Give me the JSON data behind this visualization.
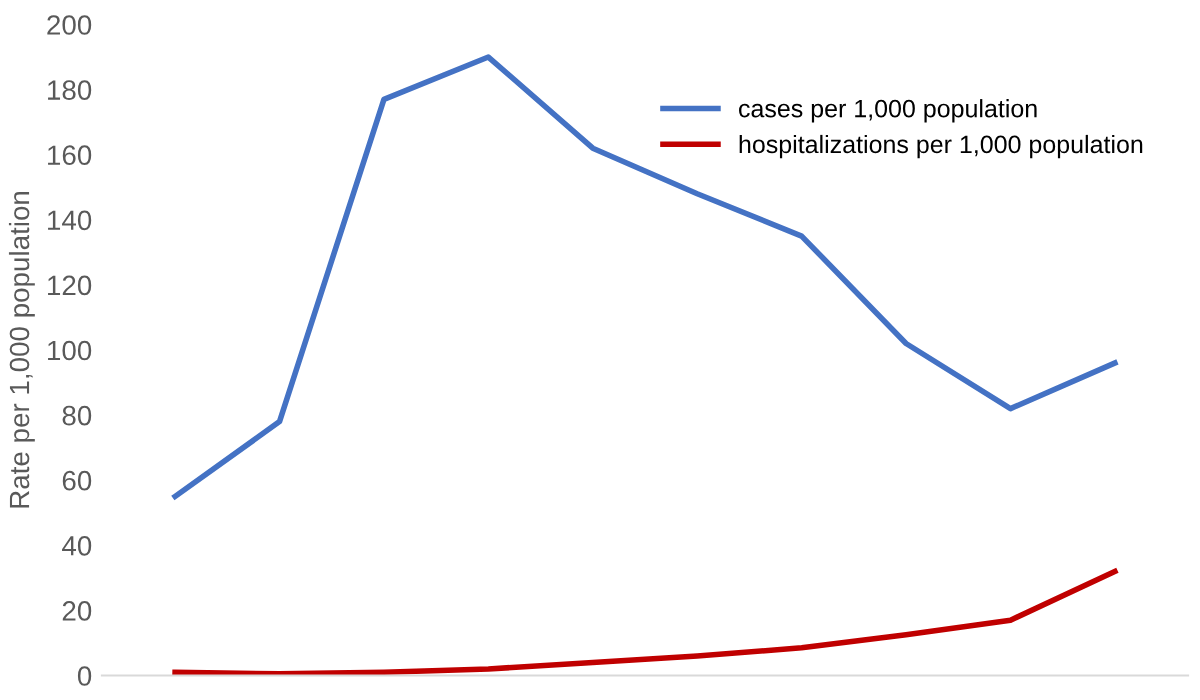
{
  "chart_data": {
    "type": "line",
    "ylabel": "Rate per 1,000 population",
    "categories": [
      null,
      null,
      null,
      null,
      null,
      null,
      null,
      null,
      null,
      null
    ],
    "series": [
      {
        "name": "cases per 1,000 population",
        "color": "#4472c4",
        "values": [
          55,
          78,
          177,
          190,
          162,
          148,
          135,
          102,
          82,
          96
        ]
      },
      {
        "name": "hospitalizations per 1,000 population",
        "color": "#c00000",
        "values": [
          1,
          0.5,
          1,
          2,
          4,
          6,
          8.5,
          12.5,
          17,
          32
        ]
      }
    ],
    "ylim": [
      0,
      200
    ],
    "yticks": [
      0,
      20,
      40,
      60,
      80,
      100,
      120,
      140,
      160,
      180,
      200
    ],
    "grid": false,
    "legend": "top right",
    "marker": "none",
    "line_style": "solid"
  }
}
